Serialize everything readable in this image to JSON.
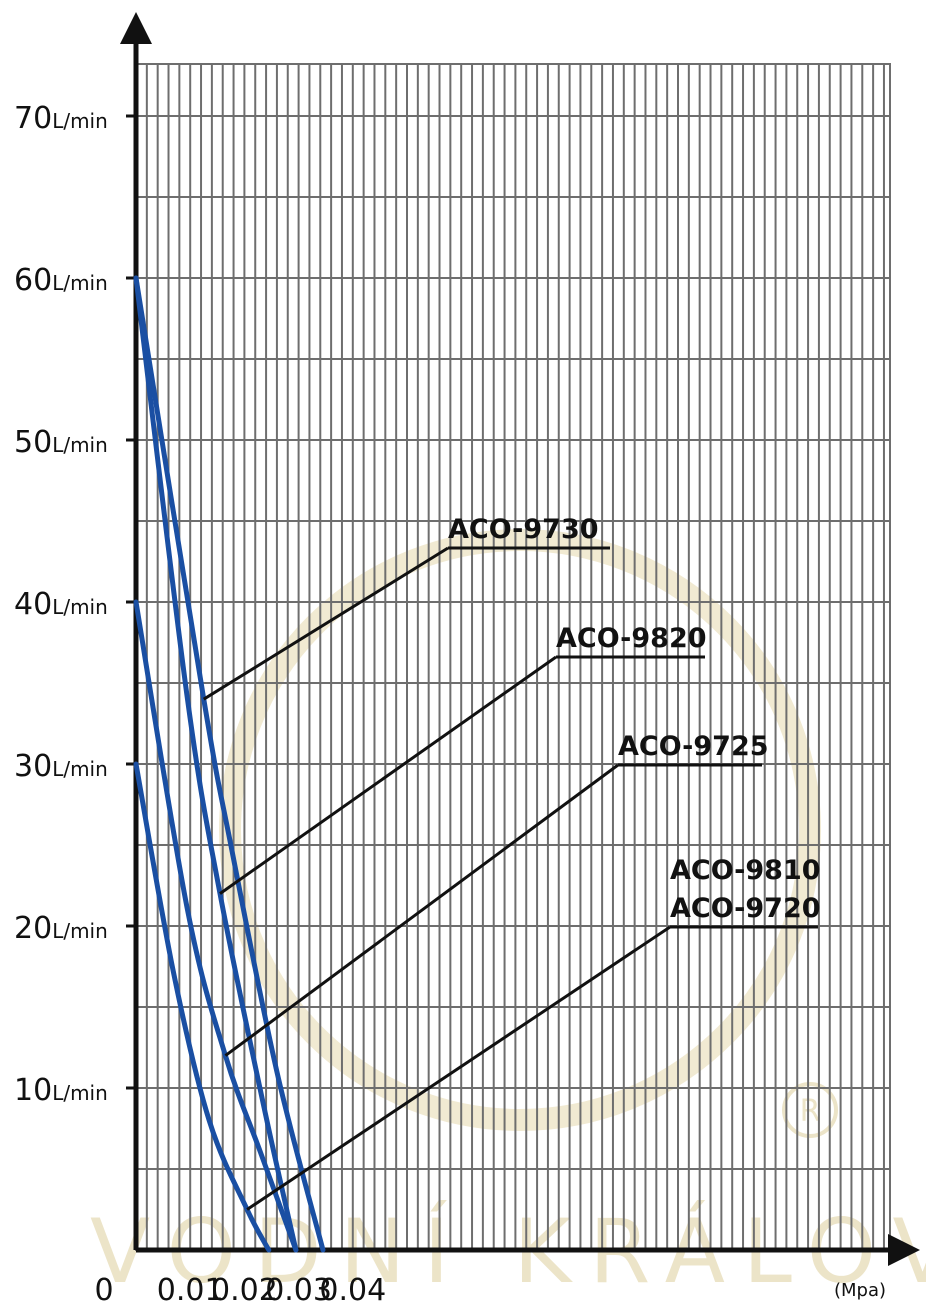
{
  "chart_data": {
    "type": "line",
    "title": "",
    "xlabel": "",
    "ylabel": "",
    "x_unit": "(Mpa)",
    "y_unit": "L/min",
    "xlim": [
      0,
      0.047
    ],
    "ylim": [
      0,
      75
    ],
    "x_ticks": [
      {
        "value": 0,
        "label": "0"
      },
      {
        "value": 0.01,
        "label": "0.01"
      },
      {
        "value": 0.02,
        "label": "0.02"
      },
      {
        "value": 0.03,
        "label": "0.03"
      },
      {
        "value": 0.04,
        "label": "0.04"
      }
    ],
    "y_ticks": [
      {
        "value": 10,
        "label": "10"
      },
      {
        "value": 20,
        "label": "20"
      },
      {
        "value": 30,
        "label": "30"
      },
      {
        "value": 40,
        "label": "40"
      },
      {
        "value": 50,
        "label": "50"
      },
      {
        "value": 60,
        "label": "60"
      },
      {
        "value": 70,
        "label": "70"
      }
    ],
    "grid": true,
    "line_color": "#1a4fa3",
    "series": [
      {
        "name": "ACO-9730",
        "points": [
          [
            0,
            60
          ],
          [
            0.0125,
            34
          ],
          [
            0.0175,
            25
          ],
          [
            0.026,
            11
          ],
          [
            0.0345,
            0
          ]
        ],
        "label_at": [
          0.0125,
          34
        ]
      },
      {
        "name": "ACO-9820",
        "points": [
          [
            0,
            60
          ],
          [
            0.0095,
            34
          ],
          [
            0.0155,
            22
          ],
          [
            0.0235,
            9
          ],
          [
            0.0295,
            0
          ]
        ],
        "label_at": [
          0.0155,
          22
        ]
      },
      {
        "name": "ACO-9725",
        "points": [
          [
            0,
            40
          ],
          [
            0.0095,
            21
          ],
          [
            0.0165,
            12
          ],
          [
            0.023,
            6
          ],
          [
            0.0295,
            0
          ]
        ],
        "label_at": [
          0.0165,
          12
        ]
      },
      {
        "name": "ACO-9810 / ACO-9720",
        "label_lines": [
          "ACO-9810",
          "ACO-9720"
        ],
        "points": [
          [
            0,
            30
          ],
          [
            0.007,
            17
          ],
          [
            0.0135,
            8
          ],
          [
            0.0205,
            2.5
          ],
          [
            0.0245,
            0
          ]
        ],
        "label_at": [
          0.0205,
          2.5
        ]
      }
    ]
  },
  "watermark": {
    "text": "VODNÍ KRÁLOVSTVÍ",
    "color": "#ece4c8"
  }
}
